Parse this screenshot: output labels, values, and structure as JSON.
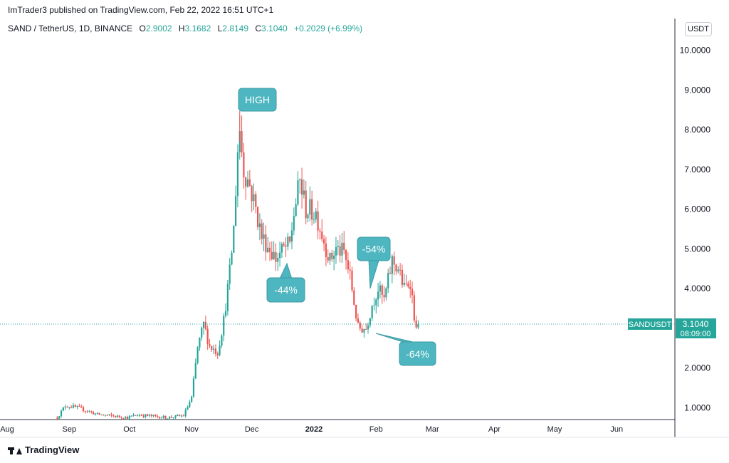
{
  "header": {
    "publisher": "ImTrader3 published on TradingView.com, Feb 22, 2022 16:51 UTC+1"
  },
  "legend": {
    "symbol": "SAND / TetherUS, 1D, BINANCE",
    "o_label": "O",
    "o_value": "2.9002",
    "h_label": "H",
    "h_value": "3.1682",
    "l_label": "L",
    "l_value": "2.8149",
    "c_label": "C",
    "c_value": "3.1040",
    "change": "+0.2029 (+6.99%)"
  },
  "currency_button": "USDT",
  "price_tag": {
    "symbol": "SANDUSDT",
    "price": "3.1040",
    "countdown": "08:09:00"
  },
  "footer": {
    "brand": "TradingView"
  },
  "colors": {
    "up": "#26a69a",
    "down": "#ef5350",
    "callout": "#4db6c0",
    "price_line": "#26a69a"
  },
  "chart_data": {
    "type": "candlestick",
    "y_ticks": [
      "1.0000",
      "2.0000",
      "3.0000",
      "4.0000",
      "5.0000",
      "6.0000",
      "7.0000",
      "8.0000",
      "9.0000",
      "10.0000"
    ],
    "y_tick_values": [
      1,
      2,
      3,
      4,
      5,
      6,
      7,
      8,
      9,
      10
    ],
    "x_ticks": [
      "Aug",
      "Sep",
      "Oct",
      "Nov",
      "Dec",
      "2022",
      "Feb",
      "Mar",
      "Apr",
      "May",
      "Jun"
    ],
    "x_tick_dates": [
      "2021-08-01",
      "2021-09-01",
      "2021-10-01",
      "2021-11-01",
      "2021-12-01",
      "2022-01-01",
      "2022-02-01",
      "2022-03-01",
      "2022-04-01",
      "2022-05-01",
      "2022-06-01"
    ],
    "ylim": [
      0.7,
      10.8
    ],
    "xlim": [
      "2021-08-01",
      "2022-06-30"
    ],
    "last_price": 3.104,
    "anchors": [
      [
        "2021-08-26",
        0.75
      ],
      [
        "2021-08-30",
        1.05
      ],
      [
        "2021-09-05",
        1.0
      ],
      [
        "2021-09-15",
        0.83
      ],
      [
        "2021-09-30",
        0.75
      ],
      [
        "2021-10-05",
        0.82
      ],
      [
        "2021-10-20",
        0.75
      ],
      [
        "2021-10-28",
        0.8
      ],
      [
        "2021-11-01",
        1.25
      ],
      [
        "2021-11-04",
        2.5
      ],
      [
        "2021-11-07",
        3.1
      ],
      [
        "2021-11-10",
        2.55
      ],
      [
        "2021-11-14",
        2.4
      ],
      [
        "2021-11-17",
        3.2
      ],
      [
        "2021-11-20",
        4.4
      ],
      [
        "2021-11-22",
        5.5
      ],
      [
        "2021-11-24",
        7.5
      ],
      [
        "2021-11-25",
        8.0
      ],
      [
        "2021-11-27",
        7.0
      ],
      [
        "2021-11-30",
        6.6
      ],
      [
        "2021-12-03",
        6.0
      ],
      [
        "2021-12-06",
        5.3
      ],
      [
        "2021-12-10",
        5.0
      ],
      [
        "2021-12-13",
        4.75
      ],
      [
        "2021-12-17",
        5.0
      ],
      [
        "2021-12-20",
        5.1
      ],
      [
        "2021-12-22",
        5.9
      ],
      [
        "2021-12-25",
        6.7
      ],
      [
        "2021-12-28",
        6.0
      ],
      [
        "2022-01-02",
        5.9
      ],
      [
        "2022-01-06",
        5.2
      ],
      [
        "2022-01-09",
        4.7
      ],
      [
        "2022-01-12",
        5.0
      ],
      [
        "2022-01-16",
        4.9
      ],
      [
        "2022-01-19",
        4.3
      ],
      [
        "2022-01-23",
        3.0
      ],
      [
        "2022-01-27",
        3.0
      ],
      [
        "2022-01-30",
        3.6
      ],
      [
        "2022-02-02",
        4.0
      ],
      [
        "2022-02-05",
        3.7
      ],
      [
        "2022-02-09",
        4.7
      ],
      [
        "2022-02-12",
        4.5
      ],
      [
        "2022-02-15",
        4.0
      ],
      [
        "2022-02-18",
        4.2
      ],
      [
        "2022-02-21",
        2.9
      ],
      [
        "2022-02-22",
        3.104
      ]
    ],
    "annotations": [
      {
        "text": "HIGH"
      },
      {
        "text": "-44%"
      },
      {
        "text": "-54%"
      },
      {
        "text": "-64%"
      }
    ]
  }
}
